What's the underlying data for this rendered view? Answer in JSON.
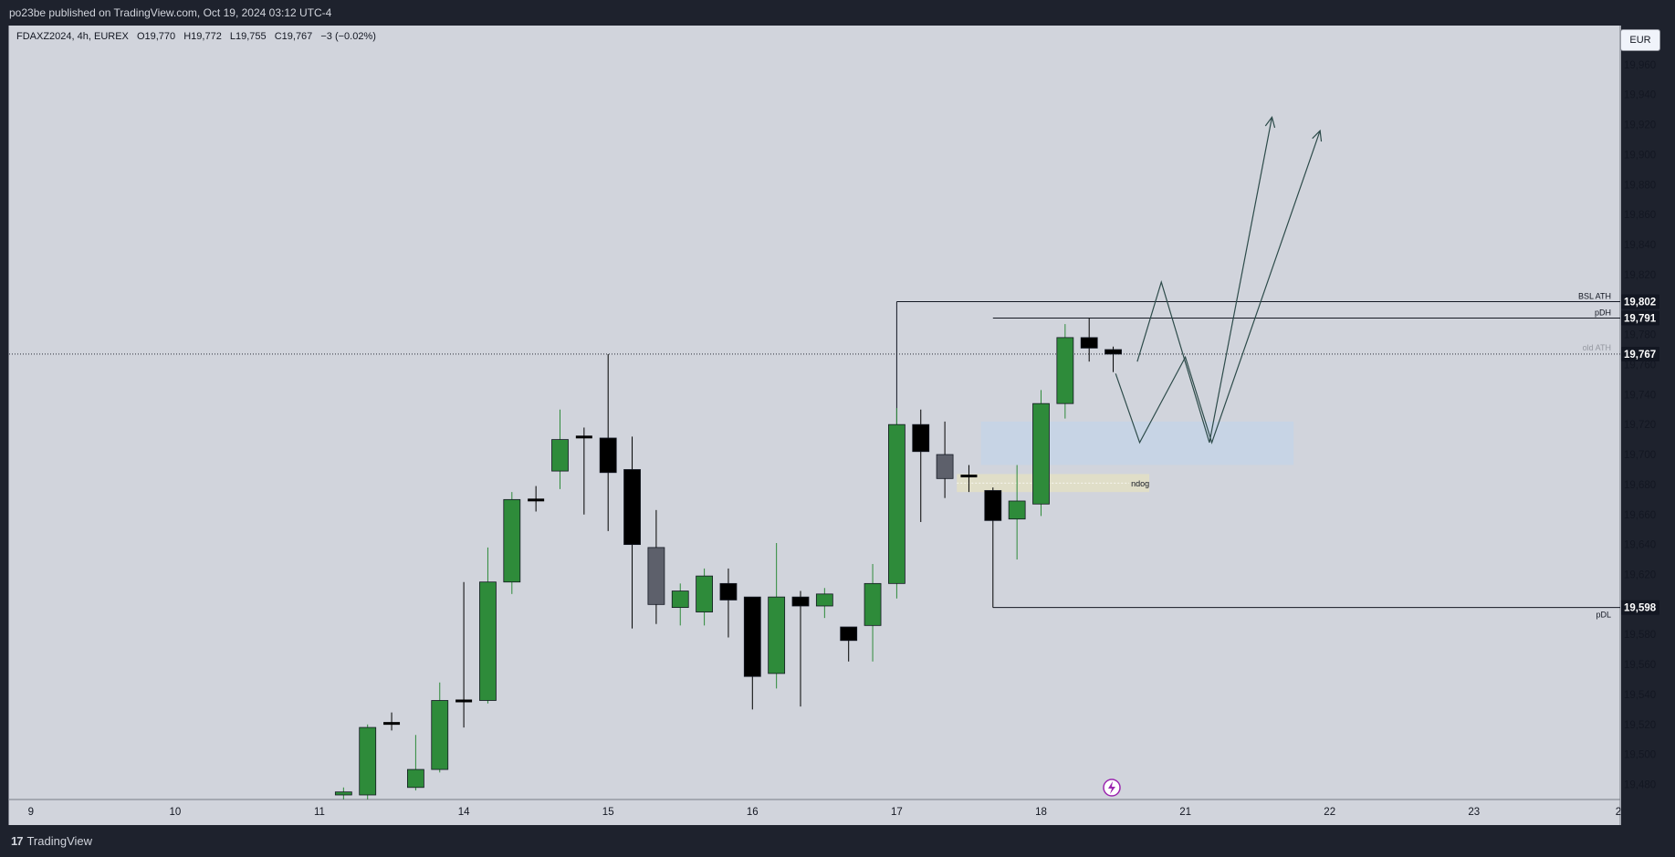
{
  "header": {
    "text": "po23be published on TradingView.com, Oct 19, 2024 03:12 UTC-4"
  },
  "legend": {
    "symbol": "FDAXZ2024, 4h, EUREX",
    "open": "O19,770",
    "high": "H19,772",
    "low": "L19,755",
    "close": "C19,767",
    "change": "−3 (−0.02%)"
  },
  "currency": "EUR",
  "footer": {
    "brand": "TradingView",
    "logo_icon": "tradingview-logo-icon"
  },
  "colors": {
    "bull": "#2e8b3a",
    "bear": "#000000",
    "gray": "#5d606b",
    "bg": "#d1d4dc",
    "dark": "#1e222d"
  },
  "chart_data": {
    "type": "candlestick",
    "timeframe": "4h",
    "ylim": [
      19470,
      19975
    ],
    "y_ticks": [
      19480,
      19500,
      19520,
      19540,
      19560,
      19580,
      19600,
      19620,
      19640,
      19660,
      19680,
      19700,
      19720,
      19740,
      19760,
      19780,
      19800,
      19820,
      19840,
      19860,
      19880,
      19900,
      19920,
      19940,
      19960
    ],
    "x_ticks": [
      {
        "label": "9",
        "slot": -12
      },
      {
        "label": "10",
        "slot": -6
      },
      {
        "label": "11",
        "slot": 0
      },
      {
        "label": "14",
        "slot": 6
      },
      {
        "label": "15",
        "slot": 12
      },
      {
        "label": "16",
        "slot": 18
      },
      {
        "label": "17",
        "slot": 24
      },
      {
        "label": "18",
        "slot": 30
      },
      {
        "label": "21",
        "slot": 36
      },
      {
        "label": "22",
        "slot": 42
      },
      {
        "label": "23",
        "slot": 48
      },
      {
        "label": "2",
        "slot": 54
      }
    ],
    "candles": [
      {
        "slot": 1,
        "o": 19473,
        "h": 19478,
        "l": 19465,
        "c": 19475,
        "dir": "up"
      },
      {
        "slot": 2,
        "o": 19473,
        "h": 19520,
        "l": 19468,
        "c": 19518,
        "dir": "up"
      },
      {
        "slot": 3,
        "o": 19519,
        "h": 19528,
        "l": 19516,
        "c": 19521,
        "dir": "doji"
      },
      {
        "slot": 4,
        "o": 19478,
        "h": 19513,
        "l": 19476,
        "c": 19490,
        "dir": "up"
      },
      {
        "slot": 5,
        "o": 19490,
        "h": 19548,
        "l": 19488,
        "c": 19536,
        "dir": "up"
      },
      {
        "slot": 6,
        "o": 19536,
        "h": 19615,
        "l": 19518,
        "c": 19534,
        "dir": "doji"
      },
      {
        "slot": 7,
        "o": 19536,
        "h": 19638,
        "l": 19534,
        "c": 19615,
        "dir": "up"
      },
      {
        "slot": 8,
        "o": 19615,
        "h": 19675,
        "l": 19607,
        "c": 19670,
        "dir": "up"
      },
      {
        "slot": 9,
        "o": 19668,
        "h": 19679,
        "l": 19662,
        "c": 19670,
        "dir": "doji"
      },
      {
        "slot": 10,
        "o": 19689,
        "h": 19730,
        "l": 19677,
        "c": 19710,
        "dir": "up"
      },
      {
        "slot": 11,
        "o": 19711,
        "h": 19718,
        "l": 19660,
        "c": 19712,
        "dir": "doji"
      },
      {
        "slot": 12,
        "o": 19711,
        "h": 19767,
        "l": 19649,
        "c": 19688,
        "dir": "down"
      },
      {
        "slot": 13,
        "o": 19690,
        "h": 19712,
        "l": 19584,
        "c": 19640,
        "dir": "down"
      },
      {
        "slot": 14,
        "o": 19638,
        "h": 19663,
        "l": 19587,
        "c": 19600,
        "dir": "gray"
      },
      {
        "slot": 15,
        "o": 19598,
        "h": 19614,
        "l": 19586,
        "c": 19609,
        "dir": "up"
      },
      {
        "slot": 16,
        "o": 19595,
        "h": 19624,
        "l": 19586,
        "c": 19619,
        "dir": "up"
      },
      {
        "slot": 17,
        "o": 19614,
        "h": 19624,
        "l": 19578,
        "c": 19603,
        "dir": "down"
      },
      {
        "slot": 18,
        "o": 19605,
        "h": 19605,
        "l": 19530,
        "c": 19552,
        "dir": "down"
      },
      {
        "slot": 19,
        "o": 19554,
        "h": 19641,
        "l": 19544,
        "c": 19605,
        "dir": "up"
      },
      {
        "slot": 20,
        "o": 19605,
        "h": 19609,
        "l": 19532,
        "c": 19599,
        "dir": "down"
      },
      {
        "slot": 21,
        "o": 19599,
        "h": 19611,
        "l": 19591,
        "c": 19607,
        "dir": "up"
      },
      {
        "slot": 22,
        "o": 19585,
        "h": 19585,
        "l": 19562,
        "c": 19576,
        "dir": "down"
      },
      {
        "slot": 23,
        "o": 19586,
        "h": 19627,
        "l": 19562,
        "c": 19614,
        "dir": "up"
      },
      {
        "slot": 24,
        "o": 19614,
        "h": 19731,
        "l": 19604,
        "c": 19720,
        "dir": "up"
      },
      {
        "slot": 25,
        "o": 19720,
        "h": 19730,
        "l": 19655,
        "c": 19702,
        "dir": "down"
      },
      {
        "slot": 26,
        "o": 19700,
        "h": 19722,
        "l": 19671,
        "c": 19684,
        "dir": "gray"
      },
      {
        "slot": 27,
        "o": 19684,
        "h": 19693,
        "l": 19675,
        "c": 19686,
        "dir": "doji"
      },
      {
        "slot": 28,
        "o": 19676,
        "h": 19678,
        "l": 19598,
        "c": 19656,
        "dir": "down"
      },
      {
        "slot": 29,
        "o": 19657,
        "h": 19693,
        "l": 19630,
        "c": 19669,
        "dir": "up"
      },
      {
        "slot": 30,
        "o": 19667,
        "h": 19743,
        "l": 19659,
        "c": 19734,
        "dir": "up"
      },
      {
        "slot": 31,
        "o": 19734,
        "h": 19787,
        "l": 19724,
        "c": 19778,
        "dir": "up"
      },
      {
        "slot": 32,
        "o": 19778,
        "h": 19791,
        "l": 19762,
        "c": 19771,
        "dir": "down"
      },
      {
        "slot": 33,
        "o": 19770,
        "h": 19772,
        "l": 19755,
        "c": 19767,
        "dir": "down"
      }
    ],
    "levels": [
      {
        "label": "BSL ATH",
        "price": 19802,
        "price_label": "19,802",
        "from_slot": 24
      },
      {
        "label": "pDH",
        "price": 19791,
        "price_label": "19,791",
        "from_slot": 28
      },
      {
        "label": "pDL",
        "price": 19598,
        "price_label": "19,598",
        "from_slot": 28
      }
    ],
    "current": {
      "label": "old ATH",
      "price": 19767,
      "price_label": "19,767"
    },
    "zones": [
      {
        "name": "demand-zone",
        "from_slot": 27.5,
        "to_slot": 40.5,
        "high": 19722,
        "low": 19693,
        "color": "#c6d3e6"
      },
      {
        "name": "ndog",
        "label": "ndog",
        "from_slot": 26.5,
        "to_slot": 34.5,
        "high": 19687,
        "low": 19675,
        "color": "#e3dfc4"
      }
    ],
    "projections": [
      [
        {
          "slot": 34,
          "p": 19762
        },
        {
          "slot": 35,
          "p": 19815
        },
        {
          "slot": 37,
          "p": 19708
        },
        {
          "slot": 39.6,
          "p": 19925
        }
      ],
      [
        {
          "slot": 33.1,
          "p": 19754
        },
        {
          "slot": 34.1,
          "p": 19708
        },
        {
          "slot": 36,
          "p": 19765
        },
        {
          "slot": 37.1,
          "p": 19708
        },
        {
          "slot": 41.6,
          "p": 19916
        }
      ]
    ]
  }
}
